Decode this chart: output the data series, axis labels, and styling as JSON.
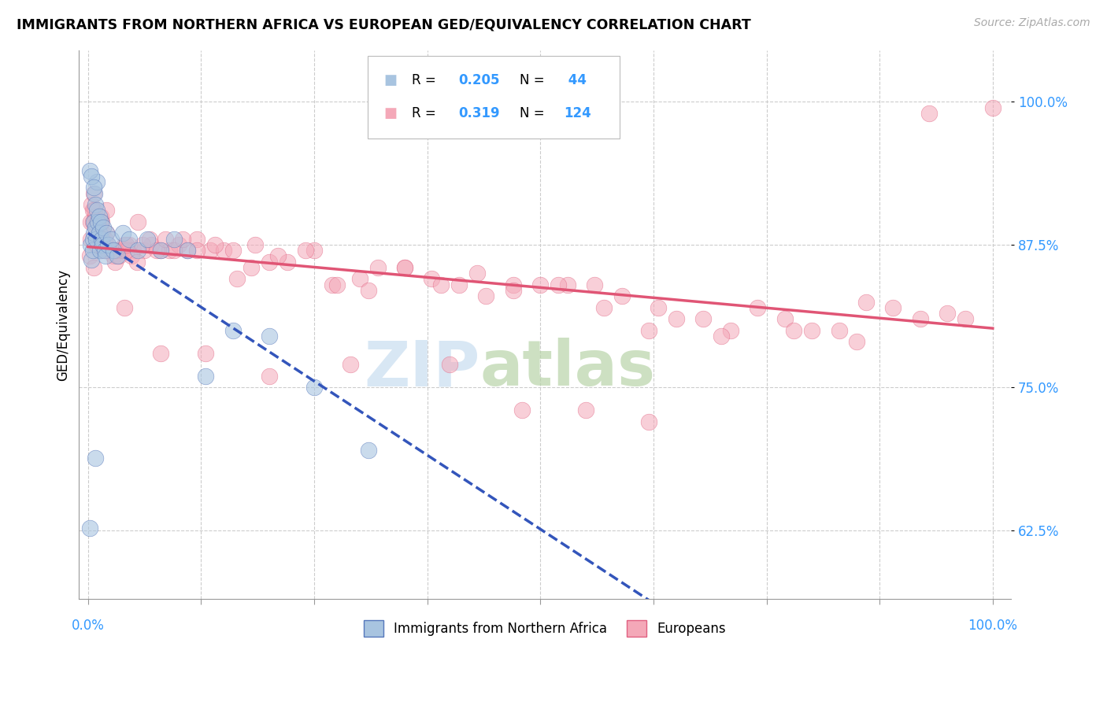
{
  "title": "IMMIGRANTS FROM NORTHERN AFRICA VS EUROPEAN GED/EQUIVALENCY CORRELATION CHART",
  "source": "Source: ZipAtlas.com",
  "ylabel": "GED/Equivalency",
  "ytick_values": [
    0.625,
    0.75,
    0.875,
    1.0
  ],
  "legend_label1": "Immigrants from Northern Africa",
  "legend_label2": "Europeans",
  "R1": "0.205",
  "N1": "44",
  "R2": "0.319",
  "N2": "124",
  "blue_color": "#a8c4e0",
  "pink_color": "#f4a8b8",
  "blue_edge_color": "#5577bb",
  "pink_edge_color": "#e06080",
  "blue_line_color": "#3355bb",
  "pink_line_color": "#e05575",
  "annotation_color": "#3399ff",
  "blue_x": [
    0.002,
    0.003,
    0.004,
    0.005,
    0.005,
    0.006,
    0.006,
    0.007,
    0.008,
    0.008,
    0.009,
    0.01,
    0.01,
    0.011,
    0.012,
    0.012,
    0.013,
    0.014,
    0.015,
    0.016,
    0.017,
    0.018,
    0.019,
    0.02,
    0.022,
    0.025,
    0.028,
    0.032,
    0.038,
    0.045,
    0.055,
    0.065,
    0.08,
    0.095,
    0.11,
    0.13,
    0.16,
    0.2,
    0.25,
    0.31,
    0.002,
    0.004,
    0.006,
    0.008
  ],
  "blue_y": [
    0.627,
    0.875,
    0.862,
    0.88,
    0.87,
    0.895,
    0.885,
    0.92,
    0.89,
    0.91,
    0.88,
    0.905,
    0.93,
    0.895,
    0.9,
    0.885,
    0.87,
    0.895,
    0.88,
    0.875,
    0.89,
    0.87,
    0.865,
    0.885,
    0.875,
    0.88,
    0.87,
    0.865,
    0.885,
    0.88,
    0.87,
    0.88,
    0.87,
    0.88,
    0.87,
    0.76,
    0.8,
    0.795,
    0.75,
    0.695,
    0.94,
    0.935,
    0.925,
    0.688
  ],
  "pink_x": [
    0.002,
    0.003,
    0.004,
    0.005,
    0.006,
    0.007,
    0.008,
    0.009,
    0.01,
    0.011,
    0.012,
    0.013,
    0.014,
    0.015,
    0.016,
    0.017,
    0.018,
    0.019,
    0.02,
    0.022,
    0.025,
    0.028,
    0.032,
    0.036,
    0.04,
    0.045,
    0.05,
    0.055,
    0.062,
    0.07,
    0.08,
    0.09,
    0.1,
    0.11,
    0.12,
    0.135,
    0.15,
    0.165,
    0.18,
    0.2,
    0.22,
    0.25,
    0.27,
    0.3,
    0.32,
    0.35,
    0.38,
    0.41,
    0.44,
    0.47,
    0.5,
    0.53,
    0.56,
    0.59,
    0.62,
    0.65,
    0.68,
    0.71,
    0.74,
    0.77,
    0.8,
    0.83,
    0.86,
    0.89,
    0.92,
    0.95,
    0.97,
    1.0,
    0.003,
    0.005,
    0.007,
    0.009,
    0.012,
    0.015,
    0.018,
    0.022,
    0.026,
    0.03,
    0.034,
    0.038,
    0.043,
    0.048,
    0.054,
    0.06,
    0.068,
    0.076,
    0.085,
    0.095,
    0.105,
    0.12,
    0.14,
    0.16,
    0.185,
    0.21,
    0.24,
    0.275,
    0.31,
    0.35,
    0.39,
    0.43,
    0.47,
    0.52,
    0.57,
    0.63,
    0.7,
    0.78,
    0.85,
    0.93,
    0.04,
    0.08,
    0.13,
    0.2,
    0.29,
    0.4,
    0.48,
    0.55,
    0.62,
    0.006,
    0.01,
    0.014,
    0.02,
    0.03,
    0.042
  ],
  "pink_y": [
    0.865,
    0.895,
    0.91,
    0.905,
    0.92,
    0.895,
    0.9,
    0.875,
    0.89,
    0.875,
    0.895,
    0.88,
    0.9,
    0.87,
    0.885,
    0.875,
    0.87,
    0.875,
    0.885,
    0.875,
    0.87,
    0.865,
    0.87,
    0.87,
    0.875,
    0.875,
    0.87,
    0.895,
    0.87,
    0.875,
    0.87,
    0.87,
    0.875,
    0.87,
    0.88,
    0.87,
    0.87,
    0.845,
    0.855,
    0.86,
    0.86,
    0.87,
    0.84,
    0.845,
    0.855,
    0.855,
    0.845,
    0.84,
    0.83,
    0.84,
    0.84,
    0.84,
    0.84,
    0.83,
    0.8,
    0.81,
    0.81,
    0.8,
    0.82,
    0.81,
    0.8,
    0.8,
    0.825,
    0.82,
    0.81,
    0.815,
    0.81,
    0.995,
    0.88,
    0.895,
    0.905,
    0.89,
    0.895,
    0.895,
    0.88,
    0.87,
    0.87,
    0.86,
    0.865,
    0.87,
    0.87,
    0.865,
    0.86,
    0.875,
    0.88,
    0.87,
    0.88,
    0.87,
    0.88,
    0.87,
    0.875,
    0.87,
    0.875,
    0.865,
    0.87,
    0.84,
    0.835,
    0.855,
    0.84,
    0.85,
    0.835,
    0.84,
    0.82,
    0.82,
    0.795,
    0.8,
    0.79,
    0.99,
    0.82,
    0.78,
    0.78,
    0.76,
    0.77,
    0.77,
    0.73,
    0.73,
    0.72,
    0.855,
    0.875,
    0.895,
    0.905,
    0.87,
    0.875
  ]
}
